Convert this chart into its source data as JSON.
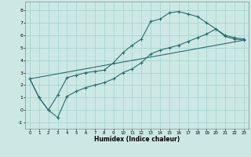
{
  "xlabel": "Humidex (Indice chaleur)",
  "ylabel": "",
  "bg_color": "#cce8e5",
  "grid_color": "#a8d4d0",
  "line_color": "#2a6b6b",
  "xlim": [
    -0.5,
    23.5
  ],
  "ylim": [
    -1.5,
    8.7
  ],
  "xticks": [
    0,
    1,
    2,
    3,
    4,
    5,
    6,
    7,
    8,
    9,
    10,
    11,
    12,
    13,
    14,
    15,
    16,
    17,
    18,
    19,
    20,
    21,
    22,
    23
  ],
  "yticks": [
    -1,
    0,
    1,
    2,
    3,
    4,
    5,
    6,
    7,
    8
  ],
  "line1_x": [
    0,
    1,
    2,
    3,
    4,
    5,
    6,
    7,
    8,
    9,
    10,
    11,
    12,
    13,
    14,
    15,
    16,
    17,
    18,
    19,
    20,
    21,
    22,
    23
  ],
  "line1_y": [
    2.5,
    1.0,
    0.0,
    1.2,
    2.6,
    2.8,
    3.0,
    3.1,
    3.2,
    3.8,
    4.6,
    5.2,
    5.7,
    7.1,
    7.3,
    7.8,
    7.9,
    7.7,
    7.5,
    7.0,
    6.5,
    6.0,
    5.8,
    5.7
  ],
  "line2_x": [
    0,
    1,
    2,
    3,
    4,
    5,
    6,
    7,
    8,
    9,
    10,
    11,
    12,
    13,
    14,
    15,
    16,
    17,
    18,
    19,
    20,
    21,
    22,
    23
  ],
  "line2_y": [
    2.5,
    1.0,
    0.0,
    -0.6,
    1.1,
    1.5,
    1.8,
    2.0,
    2.2,
    2.5,
    3.0,
    3.3,
    3.8,
    4.5,
    4.8,
    5.0,
    5.2,
    5.5,
    5.8,
    6.1,
    6.5,
    5.9,
    5.7,
    5.6
  ],
  "line3_x": [
    0,
    23
  ],
  "line3_y": [
    2.5,
    5.6
  ]
}
